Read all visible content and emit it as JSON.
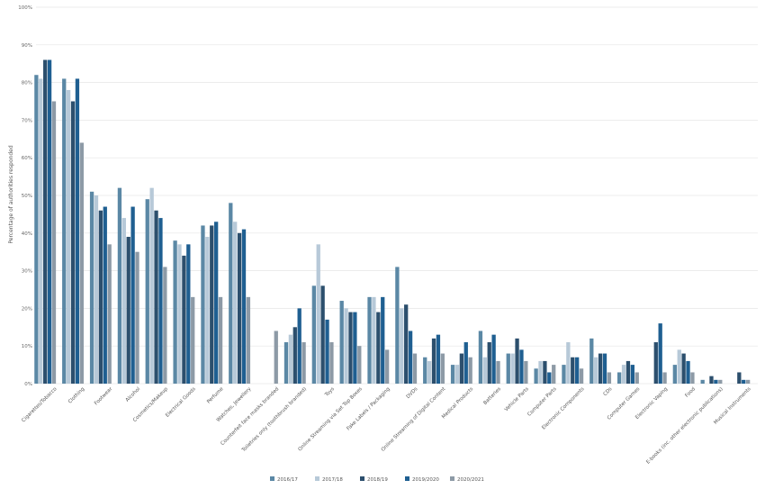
{
  "chart_data": {
    "type": "bar",
    "title": "",
    "xlabel": "",
    "ylabel": "Percentage of authorities responded",
    "ylim": [
      0,
      100
    ],
    "yticks": [
      "0%",
      "10%",
      "20%",
      "30%",
      "40%",
      "50%",
      "60%",
      "70%",
      "80%",
      "90%",
      "100%"
    ],
    "grid": true,
    "legend_position": "bottom",
    "categories": [
      "Cigarettes/Tobacco",
      "Clothing",
      "Footwear",
      "Alcohol",
      "Cosmetics/Makeup",
      "Electrical Goods",
      "Perfume",
      "Watches, Jewellery",
      "Counterfeit face masks branded",
      "Toiletries only (toothbrush branded)",
      "Toys",
      "Online Streaming via Set Top Boxes",
      "Fake Labels / Packaging",
      "DVDs",
      "Online Streaming of Digital Content",
      "Medical Products",
      "Batteries",
      "Vehicle Parts",
      "Computer Parts",
      "Electronic Components",
      "CDs",
      "Computer Games",
      "Electronic Vaping",
      "Food",
      "E-books (inc. other electronic publications)",
      "Musical Instruments"
    ],
    "series": [
      {
        "name": "2016/17",
        "color": "#5b88a5",
        "values": [
          82,
          81,
          51,
          52,
          49,
          38,
          42,
          48,
          0,
          11,
          26,
          22,
          23,
          31,
          7,
          5,
          14,
          8,
          4,
          5,
          12,
          3,
          0,
          5,
          1,
          0
        ]
      },
      {
        "name": "2017/18",
        "color": "#b7c9d8",
        "values": [
          81,
          78,
          50,
          44,
          52,
          37,
          39,
          43,
          0,
          13,
          37,
          20,
          23,
          20,
          6,
          5,
          7,
          8,
          6,
          11,
          7,
          5,
          0,
          9,
          0,
          0
        ]
      },
      {
        "name": "2018/19",
        "color": "#2c4f6d",
        "values": [
          86,
          75,
          46,
          39,
          46,
          34,
          42,
          40,
          0,
          15,
          26,
          19,
          19,
          21,
          12,
          8,
          11,
          12,
          6,
          7,
          8,
          6,
          11,
          8,
          2,
          3
        ]
      },
      {
        "name": "2019/2020",
        "color": "#1f5f91",
        "values": [
          86,
          81,
          47,
          47,
          44,
          37,
          43,
          41,
          0,
          20,
          17,
          19,
          23,
          14,
          13,
          11,
          13,
          9,
          3,
          7,
          8,
          5,
          16,
          6,
          1,
          1
        ]
      },
      {
        "name": "2020/2021",
        "color": "#8d9aa6",
        "values": [
          75,
          64,
          37,
          35,
          31,
          23,
          23,
          23,
          14,
          11,
          11,
          10,
          9,
          8,
          8,
          7,
          6,
          6,
          5,
          4,
          3,
          3,
          3,
          3,
          1,
          1
        ]
      }
    ]
  }
}
